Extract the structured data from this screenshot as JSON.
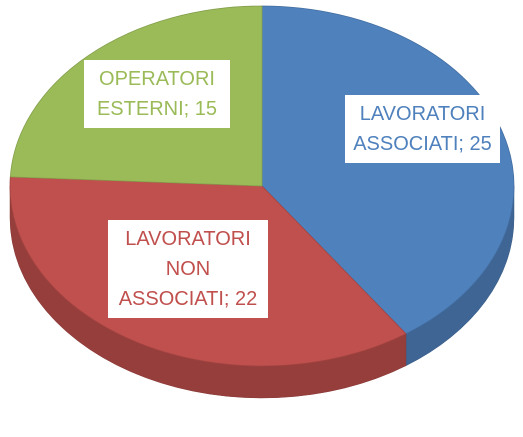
{
  "chart_data": {
    "type": "pie3d",
    "values": [
      25,
      22,
      15
    ],
    "value_labels": [
      "LAVORATORI ASSOCIATI; 25",
      "LAVORATORI NON ASSOCIATI; 22",
      "OPERATORI ESTERNI; 15"
    ],
    "colors": [
      "#4f81bd",
      "#c0504d",
      "#9bbb59"
    ]
  }
}
